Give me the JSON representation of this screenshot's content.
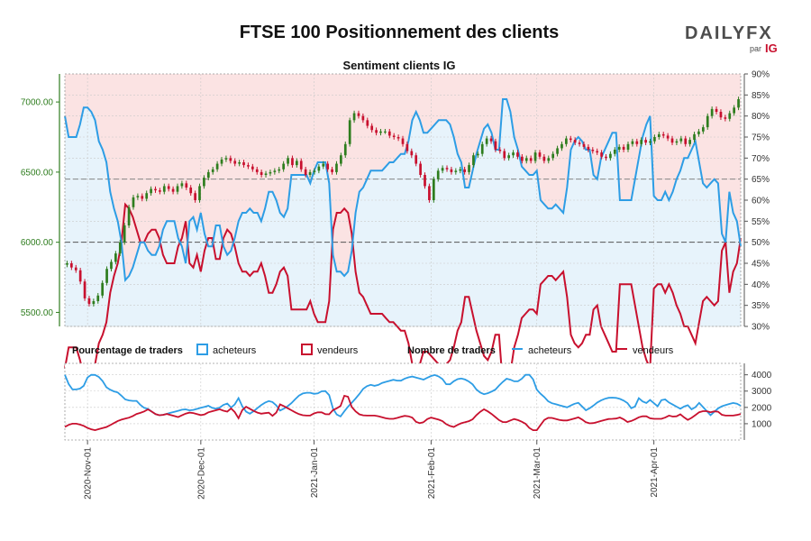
{
  "chart_data": {
    "type": "line",
    "title": "FTSE 100 Positionnement des clients",
    "subtitle": "Sentiment clients IG",
    "logo": {
      "brand": "DAILYFX",
      "by": "par",
      "ig": "IG"
    },
    "colors": {
      "long": "#2d9de5",
      "short": "#c8102e",
      "long_fill": "#e7f3fb",
      "short_fill": "#fbe3e3",
      "candle_up": "#2e7d1e",
      "candle_down": "#c8102e",
      "axis_green": "#2e7d1e"
    },
    "price_axis": {
      "min": 5400,
      "max": 7200,
      "ticks": [
        "5500.00",
        "6000.00",
        "6500.00",
        "7000.00"
      ],
      "tick_values": [
        5500,
        6000,
        6500,
        7000
      ]
    },
    "pct_axis": {
      "min": 30,
      "max": 90,
      "ticks": [
        "30%",
        "35%",
        "40%",
        "45%",
        "50%",
        "55%",
        "60%",
        "65%",
        "70%",
        "75%",
        "80%",
        "85%",
        "90%"
      ],
      "tick_values": [
        30,
        35,
        40,
        45,
        50,
        55,
        60,
        65,
        70,
        75,
        80,
        85,
        90
      ]
    },
    "count_axis": {
      "min": 0,
      "max": 4700,
      "ticks": [
        "1000",
        "2000",
        "3000",
        "4000"
      ],
      "tick_values": [
        1000,
        2000,
        3000,
        4000
      ]
    },
    "date_labels": [
      "2020-Nov-01",
      "2020-Dec-01",
      "2021-Jan-01",
      "2021-Feb-01",
      "2021-Mar-01",
      "2021-Apr-01"
    ],
    "date_label_index": [
      6,
      36,
      66,
      97,
      125,
      156
    ],
    "reference_lines": {
      "price_level": 6000,
      "pct_level_upper": 65
    },
    "legend": {
      "pct_heading": "Pourcentage de traders",
      "pct_long": "acheteurs",
      "pct_short": "vendeurs",
      "count_heading": "Nombre de traders",
      "count_long": "acheteurs",
      "count_short": "vendeurs"
    },
    "price_closes": [
      5850,
      5820,
      5800,
      5720,
      5600,
      5560,
      5580,
      5620,
      5710,
      5810,
      5860,
      5920,
      6000,
      6120,
      6250,
      6320,
      6330,
      6310,
      6350,
      6380,
      6370,
      6360,
      6400,
      6380,
      6360,
      6400,
      6420,
      6390,
      6350,
      6300,
      6400,
      6460,
      6500,
      6520,
      6560,
      6590,
      6600,
      6580,
      6560,
      6570,
      6550,
      6540,
      6520,
      6500,
      6480,
      6490,
      6500,
      6510,
      6520,
      6560,
      6600,
      6550,
      6580,
      6520,
      6480,
      6500,
      6510,
      6540,
      6560,
      6520,
      6500,
      6560,
      6620,
      6700,
      6870,
      6920,
      6900,
      6870,
      6830,
      6800,
      6780,
      6790,
      6790,
      6760,
      6750,
      6740,
      6700,
      6650,
      6620,
      6560,
      6480,
      6400,
      6300,
      6450,
      6510,
      6530,
      6520,
      6500,
      6510,
      6520,
      6500,
      6550,
      6620,
      6630,
      6700,
      6740,
      6720,
      6660,
      6650,
      6600,
      6620,
      6640,
      6610,
      6580,
      6600,
      6580,
      6640,
      6610,
      6580,
      6600,
      6630,
      6670,
      6700,
      6740,
      6730,
      6710,
      6700,
      6680,
      6660,
      6650,
      6640,
      6610,
      6600,
      6630,
      6660,
      6680,
      6660,
      6700,
      6720,
      6700,
      6730,
      6710,
      6720,
      6750,
      6770,
      6760,
      6740,
      6710,
      6720,
      6740,
      6700,
      6730,
      6770,
      6790,
      6820,
      6900,
      6950,
      6930,
      6890,
      6880,
      6920,
      6960,
      7020
    ],
    "series": [
      {
        "name": "acheteurs %",
        "values": [
          80,
          75,
          75,
          75,
          78,
          82,
          82,
          81,
          79,
          74,
          72,
          69,
          62,
          58,
          55,
          50,
          41,
          42,
          44,
          47,
          50,
          50,
          48,
          47,
          47,
          49,
          53,
          55,
          55,
          55,
          51,
          49,
          45,
          55,
          56,
          53,
          57,
          52,
          49,
          49,
          54,
          54,
          49,
          47,
          48,
          51,
          55,
          57,
          57,
          58,
          57,
          57,
          55,
          58,
          62,
          62,
          60,
          57,
          56,
          58,
          66,
          66,
          66,
          66,
          66,
          64,
          67,
          69,
          69,
          69,
          64,
          47,
          43,
          43,
          42,
          43,
          48,
          57,
          62,
          63,
          65,
          67,
          67,
          67,
          67,
          68,
          69,
          69,
          70,
          71,
          71,
          74,
          79,
          81,
          79,
          76,
          76,
          77,
          78,
          79,
          79,
          79,
          78,
          75,
          71,
          69,
          63,
          63,
          67,
          71,
          74,
          77,
          78,
          76,
          72,
          72,
          84,
          84,
          81,
          75,
          72,
          68,
          67,
          66,
          66,
          67,
          60,
          59,
          58,
          58,
          59,
          58,
          57,
          63,
          72,
          74,
          75,
          74,
          72,
          72,
          66,
          65,
          70,
          72,
          74,
          76,
          76,
          60,
          60,
          60,
          60,
          65,
          70,
          75,
          78,
          80,
          61,
          60,
          60,
          62,
          60,
          62,
          65,
          67,
          70,
          70,
          72,
          74,
          69,
          64,
          63,
          64,
          65,
          64,
          52,
          50,
          62,
          57,
          55,
          49
        ],
        "long_values_full": true
      },
      {
        "name": "vendeurs %",
        "values": [
          20,
          25,
          25,
          25,
          22,
          18,
          18,
          19,
          21,
          26,
          28,
          31,
          38,
          42,
          45,
          50,
          59,
          58,
          56,
          53,
          50,
          50,
          52,
          53,
          53,
          51,
          47,
          45,
          45,
          45,
          49,
          51,
          55,
          45,
          44,
          47,
          43,
          48,
          51,
          51,
          46,
          46,
          51,
          53,
          52,
          49,
          45,
          43,
          43,
          42,
          43,
          43,
          45,
          42,
          38,
          38,
          40,
          43,
          44,
          42,
          34,
          34,
          34,
          34,
          34,
          36,
          33,
          31,
          31,
          31,
          36,
          53,
          57,
          57,
          58,
          57,
          52,
          43,
          38,
          37,
          35,
          33,
          33,
          33,
          33,
          32,
          31,
          31,
          30,
          29,
          29,
          26,
          21,
          19,
          21,
          24,
          24,
          23,
          22,
          21,
          21,
          21,
          22,
          25,
          29,
          31,
          37,
          37,
          33,
          29,
          26,
          23,
          22,
          24,
          28,
          28,
          16,
          16,
          19,
          25,
          28,
          32,
          33,
          34,
          34,
          33,
          40,
          41,
          42,
          42,
          41,
          42,
          43,
          37,
          28,
          26,
          25,
          26,
          28,
          28,
          34,
          35,
          30,
          28,
          26,
          24,
          24,
          40,
          40,
          40,
          40,
          35,
          30,
          25,
          22,
          20,
          39,
          40,
          40,
          38,
          40,
          38,
          35,
          33,
          30,
          30,
          28,
          26,
          31,
          36,
          37,
          36,
          35,
          36,
          48,
          50,
          38,
          43,
          45,
          51
        ]
      },
      {
        "name": "acheteurs nombre",
        "values": [
          4000,
          3100,
          3100,
          3200,
          4000,
          4000,
          3800,
          3200,
          3000,
          2900,
          2500,
          2400,
          2400,
          2000,
          1900,
          1600,
          1500,
          1600,
          1700,
          1800,
          1900,
          1800,
          1900,
          2000,
          2100,
          1900,
          2000,
          2300,
          1900,
          2600,
          1800,
          1600,
          1900,
          2200,
          2400,
          2300,
          1800,
          2000,
          2300,
          2700,
          2900,
          2900,
          2800,
          3000,
          3000,
          1700,
          1400,
          1900,
          2300,
          2700,
          3200,
          3400,
          3300,
          3500,
          3600,
          3700,
          3600,
          3800,
          3900,
          3800,
          3700,
          3900,
          4000,
          3800,
          3300,
          3600,
          3800,
          3700,
          3500,
          3000,
          2800,
          2900,
          3100,
          3500,
          3800,
          3600,
          3600,
          4000,
          4000,
          3000,
          2700,
          2300,
          2200,
          2100,
          2000,
          2200,
          2300,
          1800,
          2000,
          2300,
          2500,
          2600,
          2600,
          2500,
          2300,
          1800,
          2600,
          2200,
          2500,
          2000,
          2600,
          2300,
          2100,
          1900,
          2200,
          1800,
          2300,
          1900,
          1500,
          1900,
          2100,
          2200,
          2300,
          2100
        ],
        "note": "counts"
      },
      {
        "name": "vendeurs nombre",
        "values": [
          800,
          1000,
          1000,
          900,
          700,
          600,
          700,
          800,
          1000,
          1200,
          1300,
          1400,
          1600,
          1700,
          1900,
          1600,
          1500,
          1600,
          1500,
          1400,
          1600,
          1700,
          1600,
          1500,
          1700,
          1800,
          1900,
          1700,
          2000,
          1300,
          2100,
          1900,
          1700,
          1600,
          1700,
          1400,
          2200,
          2000,
          1800,
          1600,
          1500,
          1500,
          1700,
          1700,
          1500,
          1900,
          2000,
          3000,
          2000,
          1600,
          1500,
          1500,
          1500,
          1400,
          1300,
          1300,
          1400,
          1500,
          1400,
          1000,
          1100,
          1400,
          1300,
          1200,
          900,
          800,
          1000,
          1100,
          1200,
          1600,
          1900,
          1700,
          1400,
          1100,
          1100,
          1300,
          1200,
          1000,
          600,
          600,
          1200,
          1400,
          1300,
          1200,
          1200,
          1300,
          1400,
          1100,
          1000,
          1100,
          1200,
          1300,
          1300,
          1400,
          1100,
          1200,
          1400,
          1500,
          1300,
          1300,
          1300,
          1500,
          1400,
          1600,
          1200,
          1400,
          1700,
          1800,
          1700,
          1800,
          1500,
          1500,
          1500,
          1600
        ]
      }
    ]
  }
}
